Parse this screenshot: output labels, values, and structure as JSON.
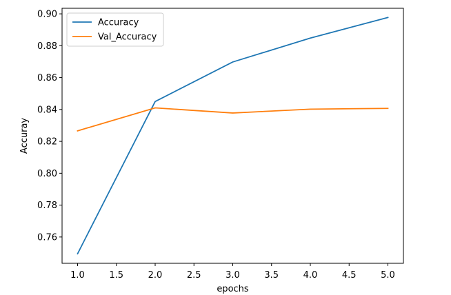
{
  "chart_data": {
    "type": "line",
    "title": "",
    "xlabel": "epochs",
    "ylabel": "Accuray",
    "x": [
      1.0,
      2.0,
      3.0,
      4.0,
      5.0
    ],
    "xlim": [
      0.8,
      5.2
    ],
    "ylim": [
      0.7435,
      0.9035
    ],
    "xticks": [
      1.0,
      1.5,
      2.0,
      2.5,
      3.0,
      3.5,
      4.0,
      4.5,
      5.0
    ],
    "xtick_labels": [
      "1.0",
      "1.5",
      "2.0",
      "2.5",
      "3.0",
      "3.5",
      "4.0",
      "4.5",
      "5.0"
    ],
    "yticks": [
      0.76,
      0.78,
      0.8,
      0.82,
      0.84,
      0.86,
      0.88,
      0.9
    ],
    "ytick_labels": [
      "0.76",
      "0.78",
      "0.80",
      "0.82",
      "0.84",
      "0.86",
      "0.88",
      "0.90"
    ],
    "grid": false,
    "legend_position": "top-left",
    "series": [
      {
        "name": "Accuracy",
        "color": "#1f77b4",
        "values": [
          0.7495,
          0.845,
          0.8698,
          0.8848,
          0.8977
        ]
      },
      {
        "name": "Val_Accuracy",
        "color": "#ff7f0e",
        "values": [
          0.8266,
          0.841,
          0.8378,
          0.8402,
          0.8407
        ]
      }
    ]
  }
}
